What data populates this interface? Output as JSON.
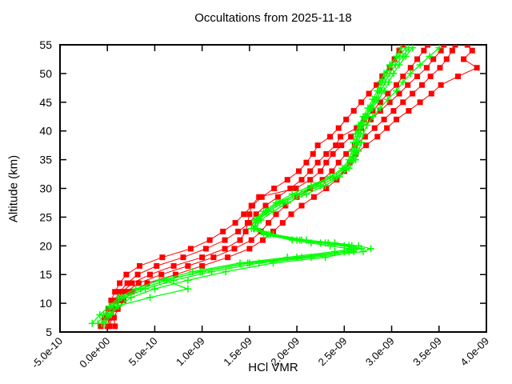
{
  "chart_data": {
    "type": "line",
    "title": "Occultations from 2025-11-18",
    "xlabel": "HCl VMR",
    "ylabel": "Altitude (km)",
    "xlim_1e9": [
      -0.5,
      4.0
    ],
    "ylim_km": [
      5,
      55
    ],
    "grid": false,
    "legend": "none",
    "colors": {
      "red": "#ff0000",
      "green": "#00ff00",
      "axis": "#000000",
      "background": "#ffffff"
    },
    "xticks": [
      {
        "value": -0.5,
        "label": "-5.0e-10"
      },
      {
        "value": 0.0,
        "label": "0.0e+00"
      },
      {
        "value": 0.5,
        "label": "5.0e-10"
      },
      {
        "value": 1.0,
        "label": "1.0e-09"
      },
      {
        "value": 1.5,
        "label": "1.5e-09"
      },
      {
        "value": 2.0,
        "label": "2.0e-09"
      },
      {
        "value": 2.5,
        "label": "2.5e-09"
      },
      {
        "value": 3.0,
        "label": "3.0e-09"
      },
      {
        "value": 3.5,
        "label": "3.5e-09"
      },
      {
        "value": 4.0,
        "label": "4.0e-09"
      }
    ],
    "yticks": [
      {
        "value": 5,
        "label": "5"
      },
      {
        "value": 10,
        "label": "10"
      },
      {
        "value": 15,
        "label": "15"
      },
      {
        "value": 20,
        "label": "20"
      },
      {
        "value": 25,
        "label": "25"
      },
      {
        "value": 30,
        "label": "30"
      },
      {
        "value": 35,
        "label": "35"
      },
      {
        "value": 40,
        "label": "40"
      },
      {
        "value": 45,
        "label": "45"
      },
      {
        "value": 50,
        "label": "50"
      },
      {
        "value": 55,
        "label": "55"
      }
    ],
    "series": [
      {
        "name": "occultation-profile-1-squares",
        "style": "squares",
        "color": "red",
        "alt_km": [
          6,
          7.5,
          9,
          10.5,
          12,
          13.5,
          15,
          16.5,
          18,
          19.5,
          21,
          22.5,
          24,
          25.5,
          27,
          28.5,
          30,
          31.5,
          33,
          34.5,
          36,
          37.5,
          39,
          40.5,
          42,
          43.5,
          45,
          46.5,
          48,
          49.5,
          51,
          52.5,
          54,
          55
        ],
        "vmr_1e9": [
          -0.07,
          -0.03,
          0.01,
          0.04,
          0.08,
          0.13,
          0.2,
          0.34,
          0.58,
          0.88,
          1.08,
          1.22,
          1.35,
          1.44,
          1.53,
          1.63,
          1.76,
          1.9,
          2.02,
          2.1,
          2.17,
          2.22,
          2.35,
          2.44,
          2.52,
          2.6,
          2.68,
          2.76,
          2.84,
          2.9,
          2.98,
          3.03,
          3.08,
          3.12
        ]
      },
      {
        "name": "occultation-profile-2-squares",
        "style": "squares",
        "color": "red",
        "alt_km": [
          6,
          7.5,
          9,
          10.5,
          12,
          13.5,
          15,
          16.5,
          18,
          19.5,
          21,
          22.5,
          24,
          25.5,
          27,
          28.5,
          30,
          31.5,
          33,
          34.5,
          36,
          37.5,
          39,
          40.5,
          42,
          43.5,
          45,
          46.5,
          48,
          49.5,
          51,
          52.5,
          54,
          55
        ],
        "vmr_1e9": [
          0.0,
          0.02,
          0.05,
          0.08,
          0.13,
          0.21,
          0.32,
          0.52,
          0.8,
          1.04,
          1.24,
          1.38,
          1.5,
          1.57,
          1.67,
          1.8,
          1.93,
          2.05,
          2.14,
          2.22,
          2.31,
          2.41,
          2.46,
          2.63,
          2.71,
          2.8,
          2.88,
          2.96,
          3.05,
          3.12,
          3.2,
          3.27,
          3.34,
          3.38
        ]
      },
      {
        "name": "occultation-profile-3-squares",
        "style": "squares",
        "color": "red",
        "alt_km": [
          6,
          7.5,
          9,
          10.5,
          12,
          13.5,
          15,
          16.5,
          18,
          19.5,
          21,
          22.5,
          24,
          25.5,
          27,
          28.5,
          30,
          31.5,
          33,
          34.5,
          36,
          37.5,
          39,
          40.5,
          42,
          43.5,
          45,
          46.5,
          48,
          49.5,
          51,
          52.5,
          54,
          55
        ],
        "vmr_1e9": [
          0.01,
          0.03,
          0.06,
          0.1,
          0.16,
          0.26,
          0.45,
          0.7,
          1.0,
          1.24,
          1.4,
          1.46,
          1.48,
          1.5,
          1.52,
          1.6,
          1.99,
          2.14,
          2.25,
          2.31,
          2.38,
          2.47,
          2.57,
          2.68,
          2.78,
          2.88,
          2.98,
          3.08,
          3.17,
          3.27,
          3.37,
          3.44,
          3.52,
          3.55
        ]
      },
      {
        "name": "occultation-profile-4-squares",
        "style": "squares",
        "color": "red",
        "alt_km": [
          6,
          7.5,
          9,
          10.5,
          12,
          13.5,
          15,
          16.5,
          18,
          19.5,
          21,
          22.5,
          24,
          25.5,
          27,
          28.5,
          30,
          31.5,
          33,
          34.5,
          36,
          37.5,
          39,
          40.5,
          42,
          43.5,
          45,
          46.5,
          48,
          49.5,
          51,
          52.5,
          54,
          55
        ],
        "vmr_1e9": [
          0.02,
          0.05,
          0.08,
          0.13,
          0.2,
          0.33,
          0.57,
          0.85,
          1.12,
          1.34,
          1.52,
          1.62,
          1.7,
          1.78,
          1.88,
          2.0,
          2.14,
          2.27,
          2.37,
          2.44,
          2.52,
          2.61,
          2.72,
          2.82,
          2.92,
          3.02,
          3.12,
          3.22,
          3.32,
          3.41,
          3.51,
          3.58,
          3.64,
          3.67
        ]
      },
      {
        "name": "occultation-profile-5-squares",
        "style": "squares",
        "color": "red",
        "alt_km": [
          6,
          7.5,
          9,
          10.5,
          12,
          13.5,
          15,
          16.5,
          18,
          19.5,
          21,
          22.5,
          24,
          25.5,
          27,
          28.5,
          30,
          31.5,
          33,
          34.5,
          36,
          37.5,
          39,
          40.5,
          42,
          43.5,
          45,
          46.5,
          48,
          49.5,
          51,
          52.5,
          54,
          55
        ],
        "vmr_1e9": [
          0.08,
          0.07,
          0.11,
          0.17,
          0.26,
          0.42,
          0.72,
          1.0,
          1.27,
          1.5,
          1.64,
          1.75,
          1.85,
          1.94,
          2.05,
          2.18,
          2.31,
          2.42,
          2.5,
          2.56,
          2.62,
          2.73,
          2.85,
          2.95,
          3.05,
          3.18,
          3.3,
          3.42,
          3.52,
          3.7,
          3.9,
          3.76,
          3.85,
          3.8
        ]
      },
      {
        "name": "occultation-profile-1-plusses",
        "style": "plusses",
        "color": "green",
        "alt_km": [
          6.5,
          8,
          9.5,
          11,
          12.5,
          14,
          15.5,
          17,
          18,
          19,
          19.5,
          20,
          20.5,
          21,
          22,
          23,
          24.5,
          26,
          27.5,
          29,
          30.5,
          32,
          33.5,
          35,
          36.5,
          38,
          39.5,
          41,
          42.5,
          44,
          45.5,
          47,
          48.5,
          50,
          51.5,
          53,
          54.5
        ],
        "vmr_1e9": [
          -0.16,
          -0.08,
          0.02,
          0.12,
          0.3,
          0.55,
          0.9,
          1.4,
          1.9,
          2.4,
          2.6,
          2.55,
          2.3,
          2.05,
          1.7,
          1.52,
          1.55,
          1.65,
          1.78,
          1.95,
          2.15,
          2.35,
          2.48,
          2.55,
          2.58,
          2.6,
          2.62,
          2.65,
          2.7,
          2.75,
          2.8,
          2.85,
          2.88,
          2.92,
          2.98,
          3.05,
          3.1
        ]
      },
      {
        "name": "occultation-profile-2-plusses",
        "style": "plusses",
        "color": "green",
        "alt_km": [
          6.5,
          8,
          9.5,
          11,
          12.5,
          14,
          15.5,
          17,
          18,
          19,
          19.5,
          20,
          20.5,
          21,
          22,
          23,
          24.5,
          26,
          27.5,
          29,
          30.5,
          32,
          33.5,
          35,
          36.5,
          38,
          39.5,
          41,
          42.5,
          44,
          45.5,
          47,
          48.5,
          50,
          51.5,
          53,
          54.5
        ],
        "vmr_1e9": [
          -0.06,
          0.0,
          0.06,
          0.18,
          0.4,
          0.7,
          1.1,
          1.6,
          2.15,
          2.7,
          2.78,
          2.65,
          2.4,
          2.1,
          1.75,
          1.58,
          1.6,
          1.7,
          1.85,
          2.05,
          2.25,
          2.42,
          2.52,
          2.6,
          2.63,
          2.65,
          2.67,
          2.7,
          2.75,
          2.8,
          2.86,
          2.92,
          2.97,
          3.02,
          3.08,
          3.15,
          3.22
        ]
      },
      {
        "name": "occultation-profile-3-plusses",
        "style": "plusses",
        "color": "green",
        "alt_km": [
          6.5,
          8,
          9.5,
          11,
          12.5,
          14,
          15.5,
          17,
          18,
          19,
          19.5,
          20,
          20.5,
          21,
          22,
          23,
          24.5,
          26,
          27.5,
          29,
          30.5,
          32,
          33.5,
          35,
          36.5,
          38,
          39.5,
          41,
          42.5,
          44,
          45.5,
          47,
          48.5,
          50,
          51.5,
          53,
          54.5
        ],
        "vmr_1e9": [
          -0.04,
          0.02,
          0.1,
          0.45,
          0.85,
          0.6,
          1.0,
          1.5,
          2.0,
          2.5,
          2.62,
          2.5,
          2.25,
          2.0,
          1.68,
          1.55,
          1.58,
          1.68,
          1.8,
          2.0,
          2.2,
          2.38,
          2.5,
          2.57,
          2.6,
          2.62,
          2.64,
          2.67,
          2.72,
          2.77,
          2.82,
          2.87,
          2.9,
          2.95,
          3.0,
          3.08,
          3.15
        ]
      },
      {
        "name": "occultation-profile-4-plusses",
        "style": "plusses",
        "color": "green",
        "alt_km": [
          6.5,
          8,
          9.5,
          11,
          12.5,
          14,
          15.5,
          17,
          18,
          19,
          19.5,
          20,
          20.5,
          21,
          22,
          23,
          24.5,
          26,
          27.5,
          29,
          30.5,
          32,
          33.5,
          35,
          36.5,
          38,
          39.5,
          41,
          42.5,
          44,
          45.5,
          47,
          48.5,
          50,
          51.5,
          53,
          54.5
        ],
        "vmr_1e9": [
          -0.02,
          0.04,
          0.12,
          0.25,
          0.5,
          0.85,
          1.25,
          1.75,
          2.3,
          2.6,
          2.55,
          2.35,
          2.15,
          1.95,
          1.65,
          1.55,
          1.62,
          1.75,
          1.9,
          2.1,
          2.3,
          2.45,
          2.55,
          2.62,
          2.65,
          2.68,
          2.7,
          2.74,
          2.8,
          2.88,
          2.96,
          3.05,
          3.12,
          3.2,
          3.3,
          3.4,
          3.5
        ]
      },
      {
        "name": "occultation-profile-5-plusses",
        "style": "plusses",
        "color": "green",
        "alt_km": [
          6.5,
          8,
          9.5,
          11,
          12.5,
          14,
          15.5,
          17,
          18,
          19,
          19.5,
          20,
          20.5,
          21,
          22,
          23,
          24.5,
          26,
          27.5,
          29,
          30.5,
          32,
          33.5,
          35,
          36.5,
          38,
          39.5,
          41,
          42.5,
          44,
          45.5,
          47,
          48.5,
          50,
          51.5,
          53,
          54.5
        ],
        "vmr_1e9": [
          -0.1,
          -0.04,
          0.04,
          0.15,
          0.35,
          0.62,
          0.98,
          1.48,
          2.05,
          2.55,
          2.68,
          2.58,
          2.33,
          2.03,
          1.72,
          1.54,
          1.57,
          1.67,
          1.82,
          2.0,
          2.18,
          2.38,
          2.5,
          2.58,
          2.61,
          2.63,
          2.65,
          2.68,
          2.73,
          2.78,
          2.84,
          2.89,
          2.93,
          2.98,
          3.04,
          3.12,
          3.18
        ]
      }
    ]
  }
}
